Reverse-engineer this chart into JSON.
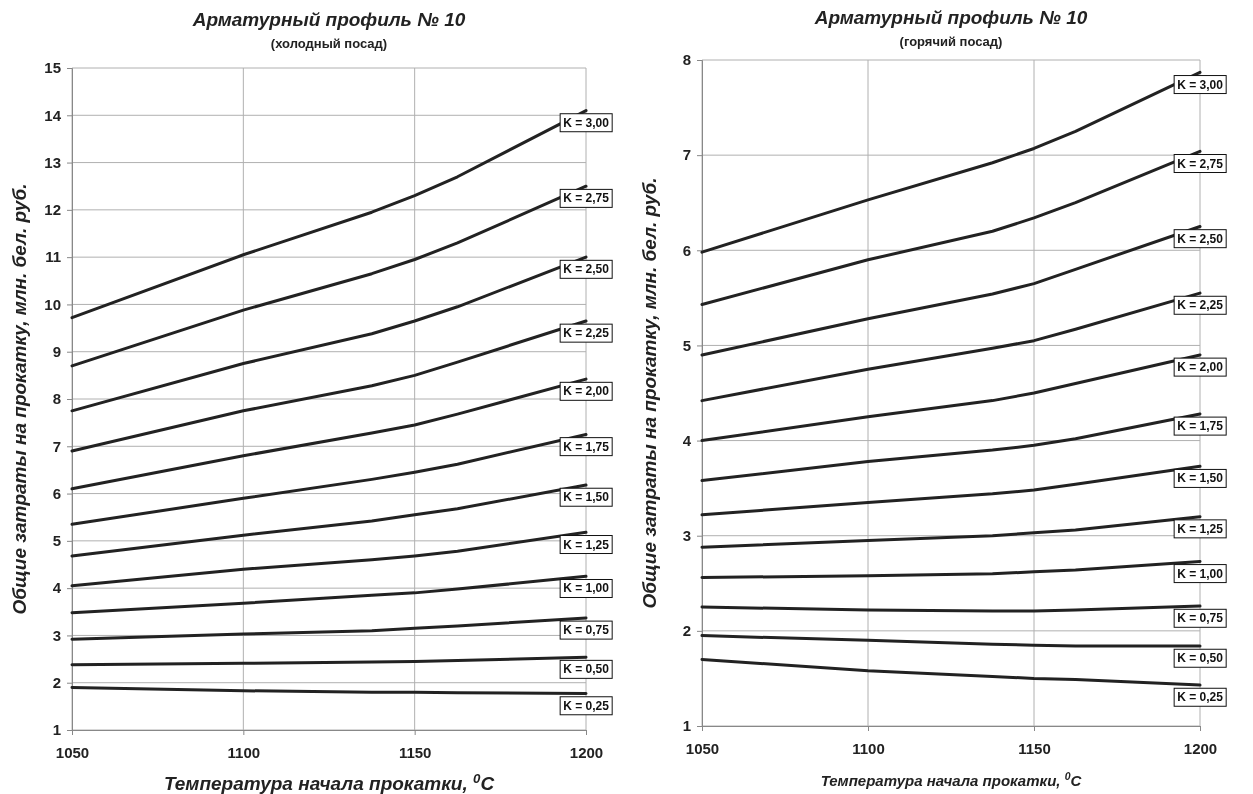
{
  "chart_data": [
    {
      "type": "line",
      "title": "Арматурный профиль № 10",
      "subtitle": "(холодный посад)",
      "xlabel": "Температура начала прокатки, $^{0}$C",
      "ylabel": "Общие затраты на прокатку, млн. бел. руб.",
      "x": [
        1050,
        1100,
        1137.5,
        1150,
        1162.5,
        1200
      ],
      "xlim": [
        1050,
        1200
      ],
      "xticks": [
        1050,
        1100,
        1150,
        1200
      ],
      "ylim": [
        1,
        15
      ],
      "yticks": [
        1,
        2,
        3,
        4,
        5,
        6,
        7,
        8,
        9,
        10,
        11,
        12,
        13,
        14,
        15
      ],
      "grid": true,
      "line_style": "solid",
      "marker": "none",
      "series": [
        {
          "name": "K = 3,00",
          "color": "#222222",
          "values": [
            9.72,
            11.05,
            11.95,
            12.3,
            12.7,
            14.1
          ]
        },
        {
          "name": "K = 2,75",
          "color": "#222222",
          "values": [
            8.7,
            9.88,
            10.65,
            10.95,
            11.3,
            12.5
          ]
        },
        {
          "name": "K = 2,50",
          "color": "#222222",
          "values": [
            7.75,
            8.75,
            9.38,
            9.65,
            9.95,
            11.0
          ]
        },
        {
          "name": "K = 2,25",
          "color": "#222222",
          "values": [
            6.9,
            7.75,
            8.28,
            8.5,
            8.78,
            9.65
          ]
        },
        {
          "name": "K = 2,00",
          "color": "#222222",
          "values": [
            6.1,
            6.8,
            7.28,
            7.45,
            7.68,
            8.42
          ]
        },
        {
          "name": "K = 1,75",
          "color": "#222222",
          "values": [
            5.35,
            5.9,
            6.3,
            6.45,
            6.62,
            7.25
          ]
        },
        {
          "name": "K = 1,50",
          "color": "#222222",
          "values": [
            4.68,
            5.12,
            5.42,
            5.55,
            5.68,
            6.18
          ]
        },
        {
          "name": "K = 1,25",
          "color": "#222222",
          "values": [
            4.05,
            4.4,
            4.6,
            4.68,
            4.78,
            5.18
          ]
        },
        {
          "name": "K = 1,00",
          "color": "#222222",
          "values": [
            3.48,
            3.68,
            3.85,
            3.9,
            3.98,
            4.25
          ]
        },
        {
          "name": "K = 0,75",
          "color": "#222222",
          "values": [
            2.92,
            3.03,
            3.1,
            3.15,
            3.2,
            3.37
          ]
        },
        {
          "name": "K = 0,50",
          "color": "#222222",
          "values": [
            2.38,
            2.41,
            2.44,
            2.45,
            2.47,
            2.54
          ]
        },
        {
          "name": "K = 0,25",
          "color": "#222222",
          "values": [
            1.9,
            1.83,
            1.8,
            1.8,
            1.79,
            1.77
          ]
        }
      ]
    },
    {
      "type": "line",
      "title": "Арматурный профиль № 10",
      "subtitle": "(горячий посад)",
      "xlabel": "Температура начала прокатки, $^{0}$C",
      "ylabel": "Общие затраты на прокатку, млн. бел. руб.",
      "x": [
        1050,
        1100,
        1137.5,
        1150,
        1162.5,
        1200
      ],
      "xlim": [
        1050,
        1200
      ],
      "xticks": [
        1050,
        1100,
        1150,
        1200
      ],
      "ylim": [
        1,
        8
      ],
      "yticks": [
        1,
        2,
        3,
        4,
        5,
        6,
        7,
        8
      ],
      "grid": true,
      "line_style": "solid",
      "marker": "none",
      "series": [
        {
          "name": "K = 3,00",
          "color": "#222222",
          "values": [
            5.98,
            6.53,
            6.92,
            7.07,
            7.25,
            7.87
          ]
        },
        {
          "name": "K = 2,75",
          "color": "#222222",
          "values": [
            5.43,
            5.9,
            6.2,
            6.34,
            6.5,
            7.04
          ]
        },
        {
          "name": "K = 2,50",
          "color": "#222222",
          "values": [
            4.9,
            5.28,
            5.54,
            5.65,
            5.8,
            6.25
          ]
        },
        {
          "name": "K = 2,25",
          "color": "#222222",
          "values": [
            4.42,
            4.75,
            4.97,
            5.05,
            5.17,
            5.55
          ]
        },
        {
          "name": "K = 2,00",
          "color": "#222222",
          "values": [
            4.0,
            4.25,
            4.42,
            4.5,
            4.6,
            4.9
          ]
        },
        {
          "name": "K = 1,75",
          "color": "#222222",
          "values": [
            3.58,
            3.78,
            3.9,
            3.95,
            4.02,
            4.28
          ]
        },
        {
          "name": "K = 1,50",
          "color": "#222222",
          "values": [
            3.22,
            3.35,
            3.44,
            3.48,
            3.54,
            3.73
          ]
        },
        {
          "name": "K = 1,25",
          "color": "#222222",
          "values": [
            2.88,
            2.95,
            3.0,
            3.03,
            3.06,
            3.2
          ]
        },
        {
          "name": "K = 1,00",
          "color": "#222222",
          "values": [
            2.56,
            2.58,
            2.6,
            2.62,
            2.64,
            2.73
          ]
        },
        {
          "name": "K = 0,75",
          "color": "#222222",
          "values": [
            2.25,
            2.22,
            2.21,
            2.21,
            2.22,
            2.26
          ]
        },
        {
          "name": "K = 0,50",
          "color": "#222222",
          "values": [
            1.95,
            1.9,
            1.86,
            1.85,
            1.84,
            1.84
          ]
        },
        {
          "name": "K = 0,25",
          "color": "#222222",
          "values": [
            1.7,
            1.58,
            1.52,
            1.5,
            1.49,
            1.43
          ]
        }
      ]
    }
  ]
}
